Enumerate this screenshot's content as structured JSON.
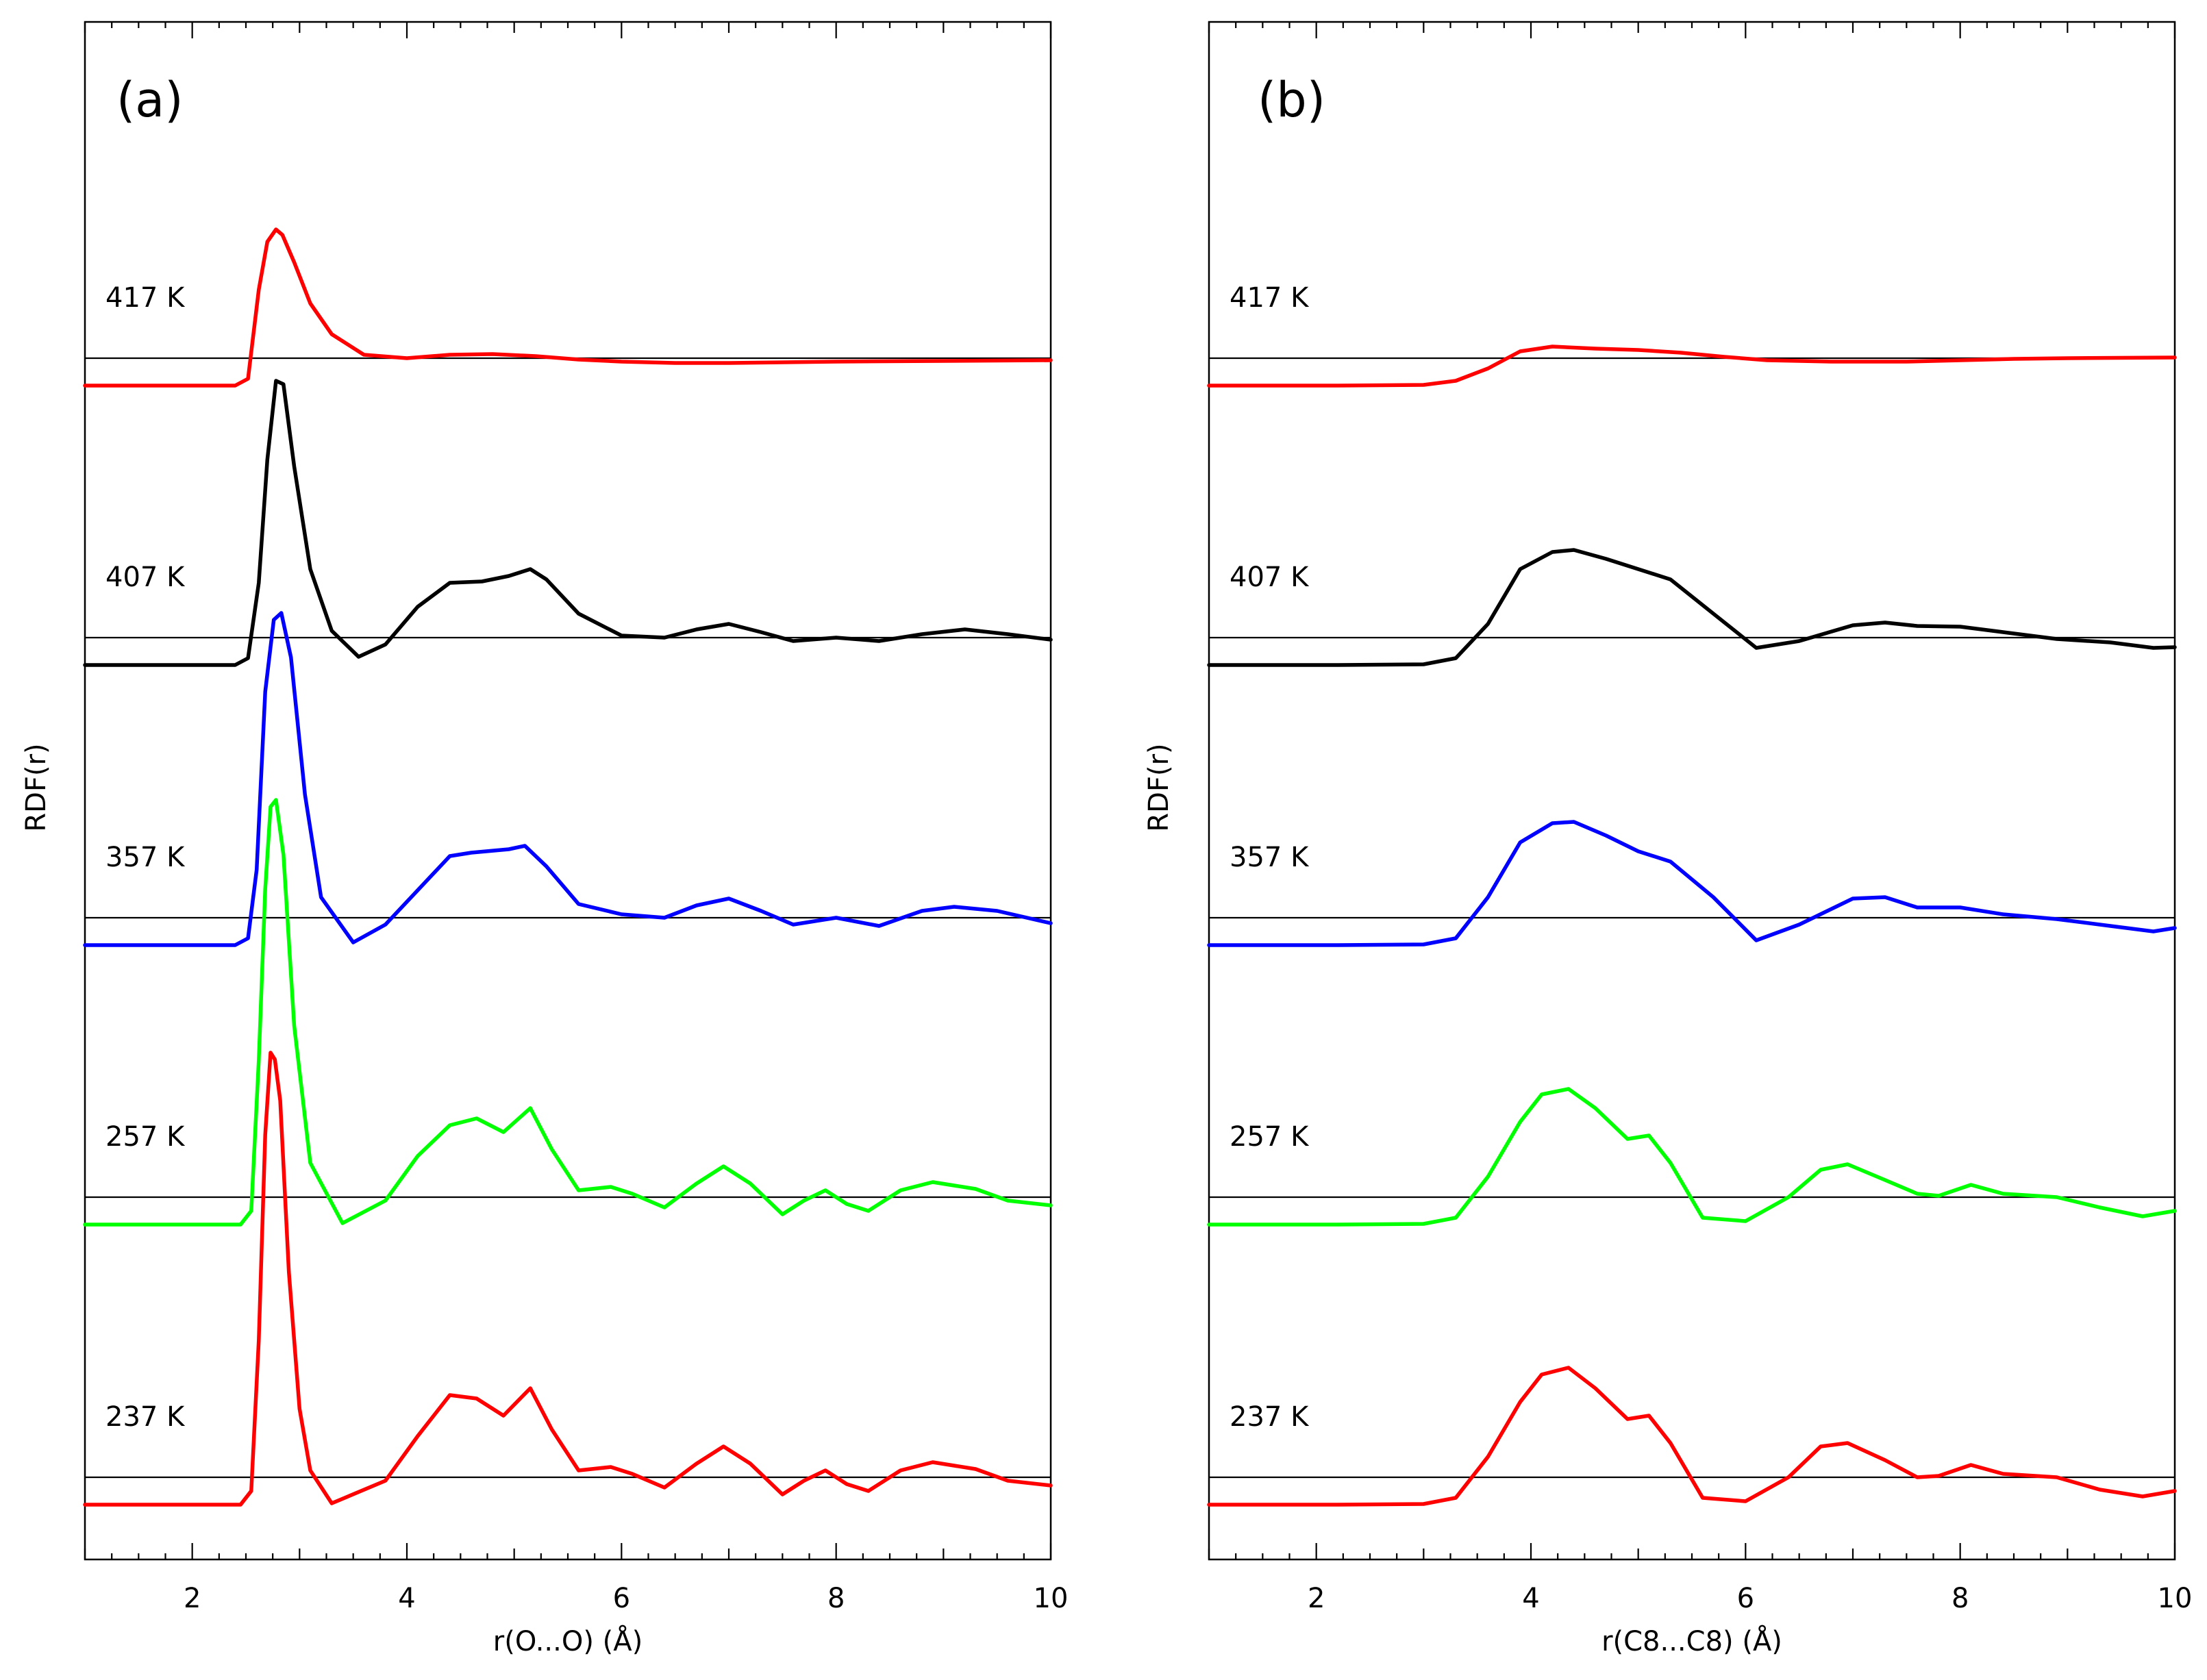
{
  "chart_data": [
    {
      "type": "line",
      "panel": "(a)",
      "xlabel": "r(O...O) (Å)",
      "ylabel": "RDF(r)",
      "xlim": [
        1,
        10
      ],
      "xticks": [
        2,
        4,
        6,
        8,
        10
      ],
      "series": [
        {
          "name": "417 K",
          "color": "#ff0000",
          "x": [
            1,
            2.4,
            2.52,
            2.62,
            2.7,
            2.78,
            2.84,
            2.95,
            3.1,
            3.3,
            3.6,
            4.0,
            4.4,
            4.8,
            5.2,
            5.6,
            6.0,
            6.5,
            7.0,
            8.0,
            9.0,
            10.0
          ],
          "y": [
            -0.4,
            -0.4,
            -0.3,
            1.0,
            1.7,
            1.88,
            1.8,
            1.4,
            0.8,
            0.35,
            0.05,
            0.0,
            0.05,
            0.06,
            0.03,
            -0.02,
            -0.05,
            -0.07,
            -0.07,
            -0.05,
            -0.04,
            -0.03
          ]
        },
        {
          "name": "407 K",
          "color": "#000000",
          "x": [
            1,
            2.4,
            2.52,
            2.62,
            2.7,
            2.78,
            2.85,
            2.95,
            3.1,
            3.3,
            3.55,
            3.8,
            4.1,
            4.4,
            4.7,
            4.95,
            5.15,
            5.3,
            5.6,
            6.0,
            6.4,
            6.7,
            7.0,
            7.3,
            7.6,
            8.0,
            8.4,
            8.8,
            9.2,
            9.6,
            10.0
          ],
          "y": [
            -0.4,
            -0.4,
            -0.3,
            0.8,
            2.6,
            3.75,
            3.7,
            2.5,
            1.0,
            0.1,
            -0.28,
            -0.1,
            0.45,
            0.8,
            0.82,
            0.9,
            1.0,
            0.85,
            0.35,
            0.03,
            0.0,
            0.12,
            0.2,
            0.08,
            -0.05,
            0.0,
            -0.05,
            0.05,
            0.12,
            0.05,
            -0.03
          ]
        },
        {
          "name": "357 K",
          "color": "#0000ff",
          "x": [
            1,
            2.4,
            2.52,
            2.6,
            2.68,
            2.76,
            2.83,
            2.92,
            3.05,
            3.2,
            3.5,
            3.8,
            4.1,
            4.4,
            4.6,
            4.95,
            5.1,
            5.3,
            5.6,
            6.0,
            6.4,
            6.7,
            7.0,
            7.3,
            7.6,
            8.0,
            8.4,
            8.8,
            9.1,
            9.5,
            10.0
          ],
          "y": [
            -0.4,
            -0.4,
            -0.3,
            0.7,
            3.3,
            4.35,
            4.45,
            3.8,
            1.8,
            0.3,
            -0.36,
            -0.1,
            0.4,
            0.9,
            0.95,
            1.0,
            1.05,
            0.75,
            0.2,
            0.05,
            0.0,
            0.18,
            0.28,
            0.1,
            -0.1,
            0.0,
            -0.12,
            0.1,
            0.16,
            0.1,
            -0.08
          ]
        },
        {
          "name": "257 K",
          "color": "#00ff00",
          "x": [
            1,
            2.45,
            2.55,
            2.62,
            2.68,
            2.73,
            2.78,
            2.85,
            2.95,
            3.1,
            3.4,
            3.8,
            4.1,
            4.4,
            4.65,
            4.9,
            5.15,
            5.35,
            5.6,
            5.9,
            6.1,
            6.4,
            6.7,
            6.95,
            7.2,
            7.5,
            7.7,
            7.9,
            8.1,
            8.3,
            8.6,
            8.9,
            9.3,
            9.6,
            10.0
          ],
          "y": [
            -0.4,
            -0.4,
            -0.2,
            2.0,
            4.5,
            5.7,
            5.8,
            5.0,
            2.5,
            0.5,
            -0.38,
            -0.05,
            0.6,
            1.05,
            1.15,
            0.95,
            1.3,
            0.7,
            0.1,
            0.15,
            0.05,
            -0.15,
            0.2,
            0.45,
            0.2,
            -0.25,
            -0.05,
            0.1,
            -0.1,
            -0.2,
            0.1,
            0.22,
            0.12,
            -0.05,
            -0.12
          ]
        },
        {
          "name": "237 K",
          "color": "#ff0000",
          "x": [
            1,
            2.45,
            2.55,
            2.62,
            2.68,
            2.73,
            2.77,
            2.82,
            2.9,
            3.0,
            3.1,
            3.3,
            3.8,
            4.1,
            4.4,
            4.65,
            4.9,
            5.15,
            5.35,
            5.6,
            5.9,
            6.1,
            6.4,
            6.7,
            6.95,
            7.2,
            7.5,
            7.7,
            7.9,
            8.1,
            8.3,
            8.6,
            8.9,
            9.3,
            9.6,
            10.0
          ],
          "y": [
            -0.4,
            -0.4,
            -0.2,
            2.0,
            5.0,
            6.2,
            6.1,
            5.5,
            3.0,
            1.0,
            0.1,
            -0.38,
            -0.05,
            0.6,
            1.2,
            1.15,
            0.9,
            1.3,
            0.7,
            0.1,
            0.15,
            0.05,
            -0.15,
            0.2,
            0.45,
            0.2,
            -0.25,
            -0.05,
            0.1,
            -0.1,
            -0.2,
            0.1,
            0.22,
            0.12,
            -0.05,
            -0.12
          ]
        }
      ]
    },
    {
      "type": "line",
      "panel": "(b)",
      "xlabel": "r(C8...C8) (Å)",
      "ylabel": "RDF(r)",
      "xlim": [
        1,
        10
      ],
      "xticks": [
        2,
        4,
        6,
        8,
        10
      ],
      "series": [
        {
          "name": "417 K",
          "color": "#ff0000",
          "x": [
            1,
            2.2,
            3.0,
            3.3,
            3.6,
            3.9,
            4.2,
            4.6,
            5.0,
            5.4,
            5.8,
            6.2,
            6.8,
            7.5,
            8.5,
            9.0,
            10.0
          ],
          "y": [
            -0.4,
            -0.4,
            -0.39,
            -0.33,
            -0.15,
            0.1,
            0.17,
            0.14,
            0.12,
            0.08,
            0.02,
            -0.03,
            -0.05,
            -0.05,
            -0.01,
            0.0,
            0.01
          ]
        },
        {
          "name": "407 K",
          "color": "#000000",
          "x": [
            1,
            2.2,
            3.0,
            3.3,
            3.6,
            3.9,
            4.2,
            4.4,
            4.7,
            5.0,
            5.3,
            5.7,
            6.1,
            6.5,
            7.0,
            7.3,
            7.6,
            8.0,
            8.4,
            8.9,
            9.4,
            9.8,
            10.0
          ],
          "y": [
            -0.4,
            -0.4,
            -0.39,
            -0.3,
            0.2,
            1.0,
            1.25,
            1.28,
            1.15,
            1.0,
            0.85,
            0.35,
            -0.15,
            -0.05,
            0.18,
            0.22,
            0.17,
            0.16,
            0.08,
            -0.02,
            -0.07,
            -0.15,
            -0.14
          ]
        },
        {
          "name": "357 K",
          "color": "#0000ff",
          "x": [
            1,
            2.2,
            3.0,
            3.3,
            3.6,
            3.9,
            4.2,
            4.4,
            4.7,
            5.0,
            5.3,
            5.7,
            6.1,
            6.5,
            7.0,
            7.3,
            7.6,
            8.0,
            8.4,
            8.9,
            9.4,
            9.8,
            10.0
          ],
          "y": [
            -0.4,
            -0.4,
            -0.39,
            -0.3,
            0.3,
            1.1,
            1.38,
            1.4,
            1.2,
            0.97,
            0.82,
            0.3,
            -0.33,
            -0.1,
            0.28,
            0.3,
            0.15,
            0.15,
            0.05,
            -0.02,
            -0.12,
            -0.2,
            -0.15
          ]
        },
        {
          "name": "257 K",
          "color": "#00ff00",
          "x": [
            1,
            2.2,
            3.0,
            3.3,
            3.6,
            3.9,
            4.1,
            4.35,
            4.6,
            4.9,
            5.1,
            5.3,
            5.6,
            6.0,
            6.4,
            6.7,
            6.95,
            7.3,
            7.6,
            7.8,
            8.1,
            8.4,
            8.9,
            9.3,
            9.7,
            10.0
          ],
          "y": [
            -0.4,
            -0.4,
            -0.39,
            -0.3,
            0.3,
            1.1,
            1.5,
            1.58,
            1.3,
            0.85,
            0.9,
            0.5,
            -0.3,
            -0.35,
            0.0,
            0.4,
            0.48,
            0.25,
            0.05,
            0.02,
            0.18,
            0.05,
            0.0,
            -0.15,
            -0.28,
            -0.2
          ]
        },
        {
          "name": "237 K",
          "color": "#ff0000",
          "x": [
            1,
            2.2,
            3.0,
            3.3,
            3.6,
            3.9,
            4.1,
            4.35,
            4.6,
            4.9,
            5.1,
            5.3,
            5.6,
            6.0,
            6.4,
            6.7,
            6.95,
            7.3,
            7.6,
            7.8,
            8.1,
            8.4,
            8.9,
            9.3,
            9.7,
            10.0
          ],
          "y": [
            -0.4,
            -0.4,
            -0.39,
            -0.3,
            0.3,
            1.1,
            1.5,
            1.6,
            1.3,
            0.85,
            0.9,
            0.5,
            -0.3,
            -0.35,
            0.0,
            0.45,
            0.5,
            0.25,
            0.0,
            0.02,
            0.18,
            0.05,
            0.0,
            -0.18,
            -0.28,
            -0.2
          ]
        }
      ]
    }
  ]
}
